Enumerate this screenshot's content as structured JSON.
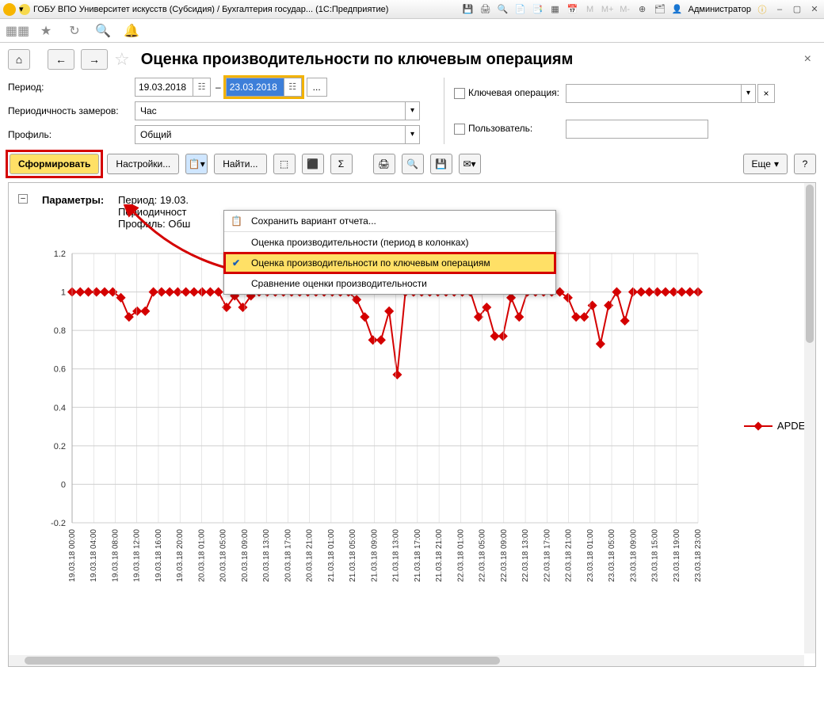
{
  "title_bar": {
    "app_title": "ГОБУ ВПО Университет искусств (Субсидия) / Бухгалтерия государ... (1С:Предприятие)",
    "user": "Администратор",
    "memory_labels": [
      "M",
      "M+",
      "M-"
    ]
  },
  "page": {
    "title": "Оценка производительности по ключевым операциям"
  },
  "form": {
    "period_label": "Период:",
    "date_from": "19.03.2018",
    "date_to": "23.03.2018",
    "frequency_label": "Периодичность замеров:",
    "frequency_value": "Час",
    "profile_label": "Профиль:",
    "profile_value": "Общий",
    "key_op_label": "Ключевая операция:",
    "user_label": "Пользователь:"
  },
  "actions": {
    "generate": "Сформировать",
    "settings": "Настройки...",
    "find": "Найти...",
    "more": "Еще",
    "help": "?"
  },
  "dropdown": {
    "save_variant": "Сохранить вариант отчета...",
    "item1": "Оценка производительности (период в колонках)",
    "item2": "Оценка производительности по ключевым операциям",
    "item3": "Сравнение оценки производительности"
  },
  "params": {
    "heading": "Параметры:",
    "line1": "Период: 19.03.",
    "line2": "Периодичност",
    "line3": "Профиль: Обш"
  },
  "chart": {
    "series_name": "APDEX",
    "line_color": "#d40000",
    "type": "line",
    "ylim": [
      -0.2,
      1.2
    ],
    "yticks": [
      -0.2,
      0,
      0.2,
      0.4,
      0.6,
      0.8,
      1,
      1.2
    ],
    "background": "#ffffff",
    "grid_color": "#cfcfcf",
    "marker": "diamond",
    "marker_size": 6,
    "line_width": 2,
    "x_labels": [
      "19.03.18 00:00",
      "19.03.18 04:00",
      "19.03.18 08:00",
      "19.03.18 12:00",
      "19.03.18 16:00",
      "19.03.18 20:00",
      "20.03.18 01:00",
      "20.03.18 05:00",
      "20.03.18 09:00",
      "20.03.18 13:00",
      "20.03.18 17:00",
      "20.03.18 21:00",
      "21.03.18 01:00",
      "21.03.18 05:00",
      "21.03.18 09:00",
      "21.03.18 13:00",
      "21.03.18 17:00",
      "21.03.18 21:00",
      "22.03.18 01:00",
      "22.03.18 05:00",
      "22.03.18 09:00",
      "22.03.18 13:00",
      "22.03.18 17:00",
      "22.03.18 21:00",
      "23.03.18 01:00",
      "23.03.18 05:00",
      "23.03.18 09:00",
      "23.03.18 15:00",
      "23.03.18 19:00",
      "23.03.18 23:00"
    ],
    "y": [
      1,
      1,
      1,
      1,
      1,
      1,
      0.97,
      0.87,
      0.9,
      0.9,
      1,
      1,
      1,
      1,
      1,
      1,
      1,
      1,
      1,
      0.92,
      0.98,
      0.92,
      0.98,
      1,
      1,
      1,
      1,
      1,
      1,
      1,
      1,
      1,
      1,
      1,
      1,
      0.96,
      0.87,
      0.75,
      0.75,
      0.9,
      0.57,
      1,
      1,
      1,
      1,
      1,
      1,
      1,
      1,
      1,
      0.87,
      0.92,
      0.77,
      0.77,
      0.97,
      0.87,
      1,
      1,
      1,
      1,
      1,
      0.97,
      0.87,
      0.87,
      0.93,
      0.73,
      0.93,
      1,
      0.85,
      1,
      1,
      1,
      1,
      1,
      1,
      1,
      1,
      1
    ]
  }
}
